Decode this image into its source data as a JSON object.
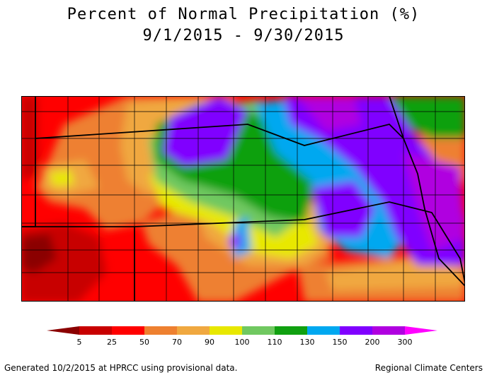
{
  "title_line1": "Percent of Normal Precipitation (%)",
  "title_line2": "9/1/2015 - 9/30/2015",
  "legend": {
    "ticks": [
      "5",
      "25",
      "50",
      "70",
      "90",
      "100",
      "110",
      "130",
      "150",
      "200",
      "300"
    ],
    "colors": {
      "lt5": "#8b0000",
      "b5_25": "#c80000",
      "b25_50": "#ff0000",
      "b50_70": "#ee8030",
      "b70_90": "#f0a840",
      "b90_100": "#e8e800",
      "b100_110": "#70c860",
      "b110_130": "#10a010",
      "b130_150": "#00a8f0",
      "b150_200": "#8000ff",
      "b200_300": "#b000e0",
      "gt300": "#ff00ff"
    }
  },
  "footer_left": "Generated 10/2/2015 at HPRCC using provisional data.",
  "footer_right": "Regional Climate Centers"
}
